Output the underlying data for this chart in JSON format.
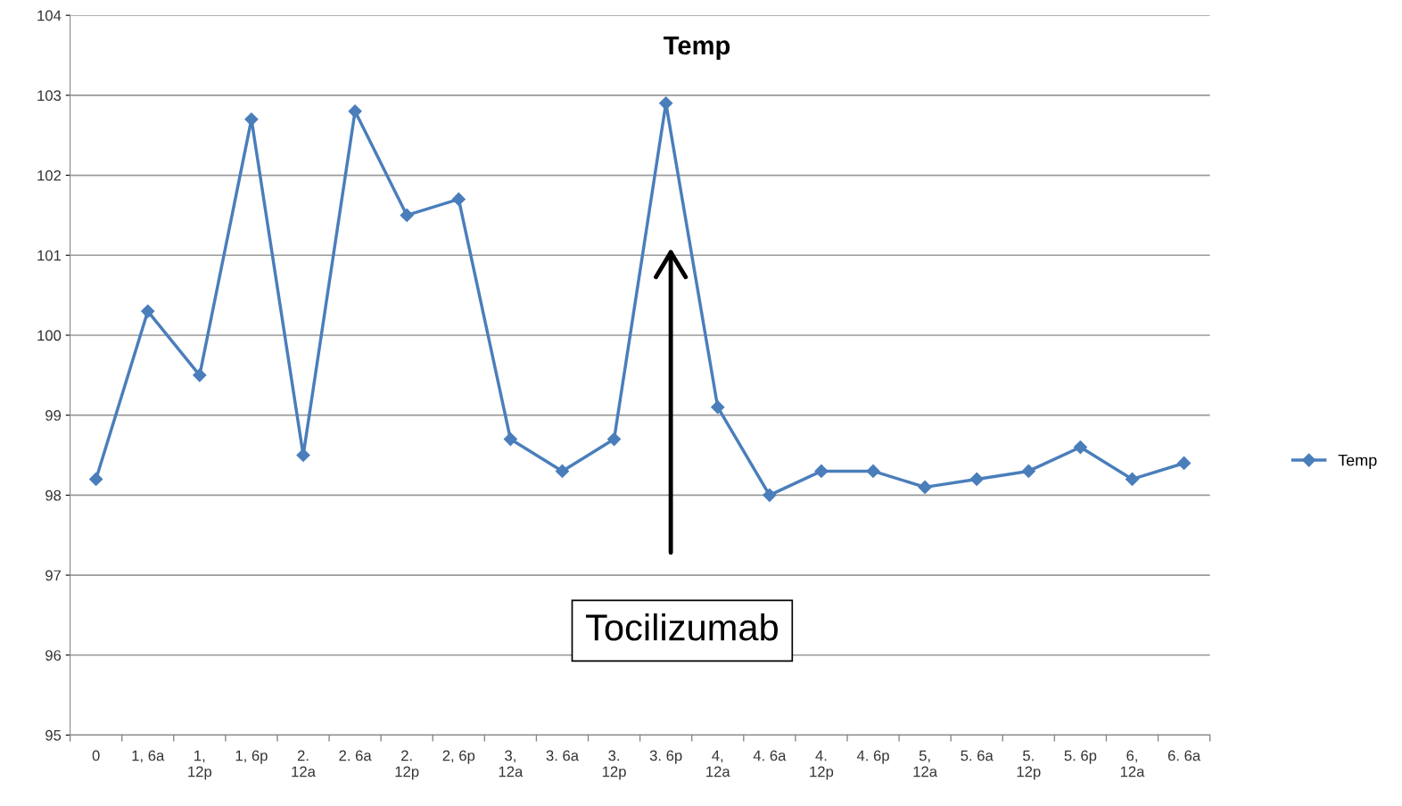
{
  "chart_data": {
    "type": "line",
    "title": "Temp",
    "categories": [
      "0",
      "1, 6a",
      "1,\n12p",
      "1, 6p",
      "2.\n12a",
      "2. 6a",
      "2.\n12p",
      "2, 6p",
      "3,\n12a",
      "3. 6a",
      "3.\n12p",
      "3. 6p",
      "4,\n12a",
      "4. 6a",
      "4.\n12p",
      "4. 6p",
      "5,\n12a",
      "5. 6a",
      "5.\n12p",
      "5. 6p",
      "6,\n12a",
      "6. 6a"
    ],
    "series": [
      {
        "name": "Temp",
        "color": "#4a7ebb",
        "values": [
          98.2,
          100.3,
          99.5,
          102.7,
          98.5,
          102.8,
          101.5,
          101.7,
          98.7,
          98.3,
          98.7,
          102.9,
          99.1,
          98.0,
          98.3,
          98.3,
          98.1,
          98.2,
          98.3,
          98.6,
          98.2,
          98.4
        ]
      }
    ],
    "ylim": [
      95,
      104
    ],
    "yticks": [
      95,
      96,
      97,
      98,
      99,
      100,
      101,
      102,
      103,
      104
    ],
    "grid": "y",
    "legend": "right",
    "marker": "diamond",
    "line_style": "solid",
    "annotations": [
      "Tocilizumab"
    ]
  }
}
